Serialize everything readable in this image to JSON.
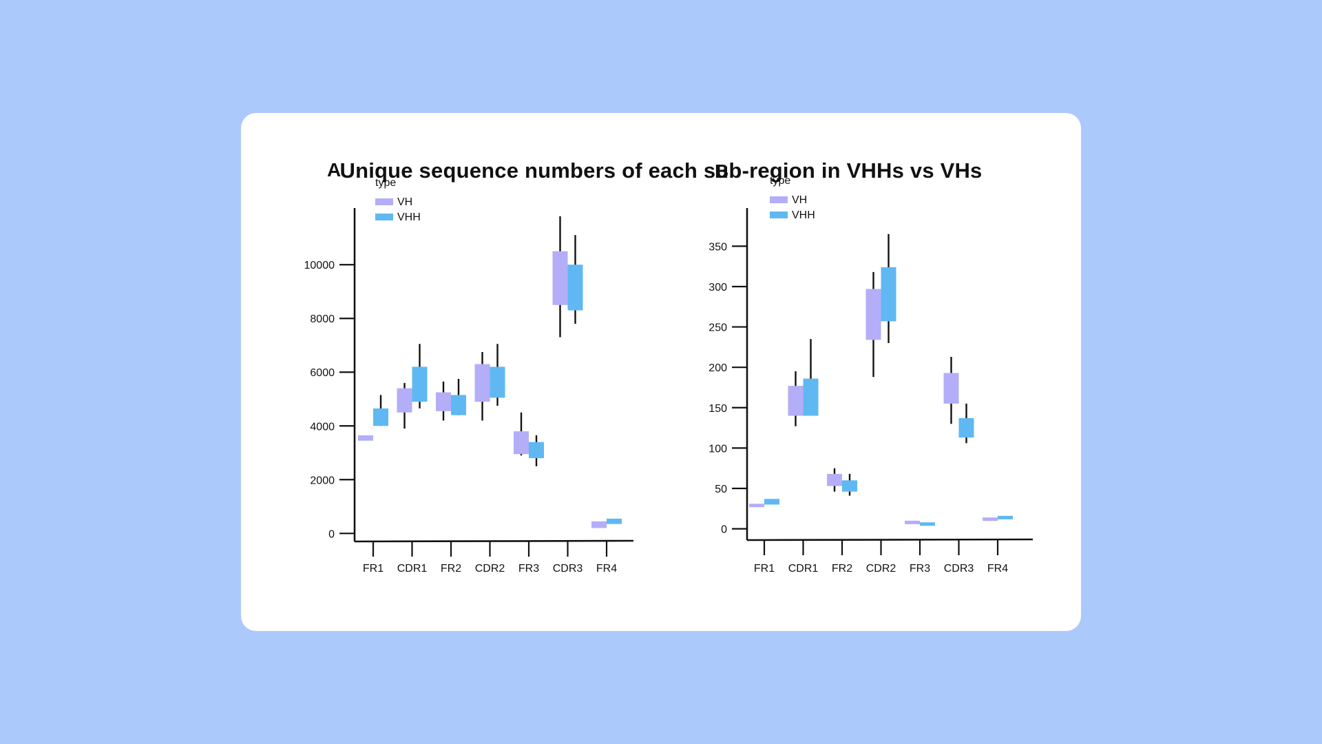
{
  "title": "Unique sequence numbers of each sub-region in VHHs vs VHs",
  "colors": {
    "background": "#abc9fa",
    "card": "#ffffff",
    "VH": "#b3aef7",
    "VHH": "#5fb8f2",
    "axis": "#111111"
  },
  "chart_data": [
    {
      "type": "box",
      "panel_label": "A",
      "categories": [
        "FR1",
        "CDR1",
        "FR2",
        "CDR2",
        "FR3",
        "CDR3",
        "FR4"
      ],
      "legend": {
        "title": "type",
        "position": "top-left",
        "entries": [
          "VH",
          "VHH"
        ]
      },
      "yticks": [
        0,
        2000,
        4000,
        6000,
        8000,
        10000
      ],
      "ylim": [
        -300,
        11800
      ],
      "grid": false,
      "series": [
        {
          "name": "VH",
          "boxes": [
            {
              "category": "FR1",
              "min": null,
              "q1": 3450,
              "q3": 3650,
              "max": null
            },
            {
              "category": "CDR1",
              "min": 3900,
              "q1": 4500,
              "q3": 5400,
              "max": 5600
            },
            {
              "category": "FR2",
              "min": 4200,
              "q1": 4550,
              "q3": 5250,
              "max": 5650
            },
            {
              "category": "CDR2",
              "min": 4200,
              "q1": 4900,
              "q3": 6300,
              "max": 6750
            },
            {
              "category": "FR3",
              "min": 2900,
              "q1": 2950,
              "q3": 3800,
              "max": 4500
            },
            {
              "category": "CDR3",
              "min": 7300,
              "q1": 8500,
              "q3": 10500,
              "max": 11800
            },
            {
              "category": "FR4",
              "min": null,
              "q1": 200,
              "q3": 450,
              "max": null
            }
          ]
        },
        {
          "name": "VHH",
          "boxes": [
            {
              "category": "FR1",
              "min": null,
              "q1": 4000,
              "q3": 4650,
              "max": 5150
            },
            {
              "category": "CDR1",
              "min": 4650,
              "q1": 4900,
              "q3": 6200,
              "max": 7050
            },
            {
              "category": "FR2",
              "min": null,
              "q1": 4400,
              "q3": 5150,
              "max": 5750
            },
            {
              "category": "CDR2",
              "min": 4750,
              "q1": 5050,
              "q3": 6200,
              "max": 7050
            },
            {
              "category": "FR3",
              "min": 2500,
              "q1": 2800,
              "q3": 3400,
              "max": 3650
            },
            {
              "category": "CDR3",
              "min": 7800,
              "q1": 8300,
              "q3": 10000,
              "max": 11100
            },
            {
              "category": "FR4",
              "min": null,
              "q1": 350,
              "q3": 550,
              "max": null
            }
          ]
        }
      ]
    },
    {
      "type": "box",
      "panel_label": "B",
      "categories": [
        "FR1",
        "CDR1",
        "FR2",
        "CDR2",
        "FR3",
        "CDR3",
        "FR4"
      ],
      "legend": {
        "title": "type",
        "position": "top-left",
        "entries": [
          "VH",
          "VHH"
        ]
      },
      "yticks": [
        0,
        50,
        100,
        150,
        200,
        250,
        300,
        350
      ],
      "ylim": [
        -14,
        387
      ],
      "grid": false,
      "series": [
        {
          "name": "VH",
          "boxes": [
            {
              "category": "FR1",
              "min": null,
              "q1": 29,
              "q3": 31,
              "max": null
            },
            {
              "category": "CDR1",
              "min": 127,
              "q1": 140,
              "q3": 177,
              "max": 195
            },
            {
              "category": "FR2",
              "min": 46,
              "q1": 53,
              "q3": 68,
              "max": 75
            },
            {
              "category": "CDR2",
              "min": 188,
              "q1": 234,
              "q3": 297,
              "max": 318
            },
            {
              "category": "FR3",
              "min": null,
              "q1": 7,
              "q3": 10,
              "max": null
            },
            {
              "category": "CDR3",
              "min": 130,
              "q1": 155,
              "q3": 193,
              "max": 213
            },
            {
              "category": "FR4",
              "min": null,
              "q1": 11,
              "q3": 14,
              "max": null
            }
          ]
        },
        {
          "name": "VHH",
          "boxes": [
            {
              "category": "FR1",
              "min": null,
              "q1": 30,
              "q3": 37,
              "max": null
            },
            {
              "category": "CDR1",
              "min": null,
              "q1": 140,
              "q3": 186,
              "max": 235
            },
            {
              "category": "FR2",
              "min": 41,
              "q1": 46,
              "q3": 60,
              "max": 68
            },
            {
              "category": "CDR2",
              "min": 230,
              "q1": 257,
              "q3": 324,
              "max": 365
            },
            {
              "category": "FR3",
              "min": null,
              "q1": 5,
              "q3": 8,
              "max": null
            },
            {
              "category": "CDR3",
              "min": 106,
              "q1": 113,
              "q3": 137,
              "max": 155
            },
            {
              "category": "FR4",
              "min": null,
              "q1": 13,
              "q3": 16,
              "max": null
            }
          ]
        }
      ]
    }
  ]
}
